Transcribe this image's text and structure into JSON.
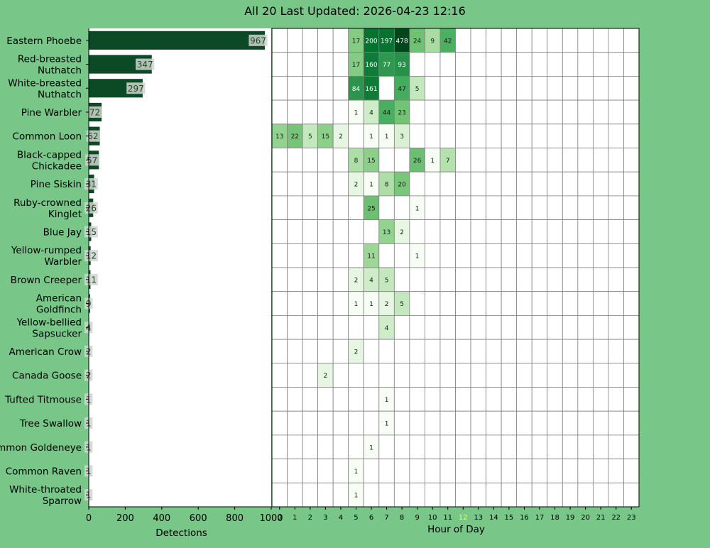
{
  "title": "All 20 Last Updated: 2026-04-23 12:16",
  "colors": {
    "page_background": "#78c688",
    "bar": "#0c4a26",
    "grid_line": "#808080",
    "current_hour_label": "#ffff33",
    "label_box": "#d3d3d3"
  },
  "current_hour": "12",
  "chart_data": [
    {
      "type": "bar",
      "orientation": "horizontal",
      "xlabel": "Detections",
      "xlim": [
        0,
        1000
      ],
      "xticks": [
        "0",
        "200",
        "400",
        "600",
        "800",
        "1000"
      ],
      "categories": [
        "Eastern Phoebe",
        "Red-breasted\nNuthatch",
        "White-breasted\nNuthatch",
        "Pine Warbler",
        "Common Loon",
        "Black-capped\nChickadee",
        "Pine Siskin",
        "Ruby-crowned\nKinglet",
        "Blue Jay",
        "Yellow-rumped\nWarbler",
        "Brown Creeper",
        "American\nGoldfinch",
        "Yellow-bellied\nSapsucker",
        "American Crow",
        "Canada Goose",
        "Tufted Titmouse",
        "Tree Swallow",
        "Common Goldeneye",
        "Common Raven",
        "White-throated\nSparrow"
      ],
      "values": [
        967,
        347,
        297,
        72,
        62,
        57,
        31,
        26,
        15,
        12,
        11,
        9,
        4,
        2,
        2,
        1,
        1,
        1,
        1,
        1
      ]
    },
    {
      "type": "heatmap",
      "xlabel": "Hour of Day",
      "hours": [
        "0",
        "1",
        "2",
        "3",
        "4",
        "5",
        "6",
        "7",
        "8",
        "9",
        "10",
        "11",
        "12",
        "13",
        "14",
        "15",
        "16",
        "17",
        "18",
        "19",
        "20",
        "21",
        "22",
        "23"
      ],
      "rows": [
        [
          null,
          null,
          null,
          null,
          null,
          17,
          200,
          197,
          478,
          24,
          9,
          42,
          null,
          null,
          null,
          null,
          null,
          null,
          null,
          null,
          null,
          null,
          null,
          null
        ],
        [
          null,
          null,
          null,
          null,
          null,
          17,
          160,
          77,
          93,
          null,
          null,
          null,
          null,
          null,
          null,
          null,
          null,
          null,
          null,
          null,
          null,
          null,
          null,
          null
        ],
        [
          null,
          null,
          null,
          null,
          null,
          84,
          161,
          null,
          47,
          5,
          null,
          null,
          null,
          null,
          null,
          null,
          null,
          null,
          null,
          null,
          null,
          null,
          null,
          null
        ],
        [
          null,
          null,
          null,
          null,
          null,
          1,
          4,
          44,
          23,
          null,
          null,
          null,
          null,
          null,
          null,
          null,
          null,
          null,
          null,
          null,
          null,
          null,
          null,
          null
        ],
        [
          13,
          22,
          5,
          15,
          2,
          null,
          1,
          1,
          3,
          null,
          null,
          null,
          null,
          null,
          null,
          null,
          null,
          null,
          null,
          null,
          null,
          null,
          null,
          null
        ],
        [
          null,
          null,
          null,
          null,
          null,
          8,
          15,
          null,
          null,
          26,
          1,
          7,
          null,
          null,
          null,
          null,
          null,
          null,
          null,
          null,
          null,
          null,
          null,
          null
        ],
        [
          null,
          null,
          null,
          null,
          null,
          2,
          1,
          8,
          20,
          null,
          null,
          null,
          null,
          null,
          null,
          null,
          null,
          null,
          null,
          null,
          null,
          null,
          null,
          null
        ],
        [
          null,
          null,
          null,
          null,
          null,
          null,
          25,
          null,
          null,
          1,
          null,
          null,
          null,
          null,
          null,
          null,
          null,
          null,
          null,
          null,
          null,
          null,
          null,
          null
        ],
        [
          null,
          null,
          null,
          null,
          null,
          null,
          null,
          13,
          2,
          null,
          null,
          null,
          null,
          null,
          null,
          null,
          null,
          null,
          null,
          null,
          null,
          null,
          null,
          null
        ],
        [
          null,
          null,
          null,
          null,
          null,
          null,
          11,
          null,
          null,
          1,
          null,
          null,
          null,
          null,
          null,
          null,
          null,
          null,
          null,
          null,
          null,
          null,
          null,
          null
        ],
        [
          null,
          null,
          null,
          null,
          null,
          2,
          4,
          5,
          null,
          null,
          null,
          null,
          null,
          null,
          null,
          null,
          null,
          null,
          null,
          null,
          null,
          null,
          null,
          null
        ],
        [
          null,
          null,
          null,
          null,
          null,
          1,
          1,
          2,
          5,
          null,
          null,
          null,
          null,
          null,
          null,
          null,
          null,
          null,
          null,
          null,
          null,
          null,
          null,
          null
        ],
        [
          null,
          null,
          null,
          null,
          null,
          null,
          null,
          4,
          null,
          null,
          null,
          null,
          null,
          null,
          null,
          null,
          null,
          null,
          null,
          null,
          null,
          null,
          null,
          null
        ],
        [
          null,
          null,
          null,
          null,
          null,
          2,
          null,
          null,
          null,
          null,
          null,
          null,
          null,
          null,
          null,
          null,
          null,
          null,
          null,
          null,
          null,
          null,
          null,
          null
        ],
        [
          null,
          null,
          null,
          2,
          null,
          null,
          null,
          null,
          null,
          null,
          null,
          null,
          null,
          null,
          null,
          null,
          null,
          null,
          null,
          null,
          null,
          null,
          null,
          null
        ],
        [
          null,
          null,
          null,
          null,
          null,
          null,
          null,
          1,
          null,
          null,
          null,
          null,
          null,
          null,
          null,
          null,
          null,
          null,
          null,
          null,
          null,
          null,
          null,
          null
        ],
        [
          null,
          null,
          null,
          null,
          null,
          null,
          null,
          1,
          null,
          null,
          null,
          null,
          null,
          null,
          null,
          null,
          null,
          null,
          null,
          null,
          null,
          null,
          null,
          null
        ],
        [
          null,
          null,
          null,
          null,
          null,
          null,
          1,
          null,
          null,
          null,
          null,
          null,
          null,
          null,
          null,
          null,
          null,
          null,
          null,
          null,
          null,
          null,
          null,
          null
        ],
        [
          null,
          null,
          null,
          null,
          null,
          1,
          null,
          null,
          null,
          null,
          null,
          null,
          null,
          null,
          null,
          null,
          null,
          null,
          null,
          null,
          null,
          null,
          null,
          null
        ],
        [
          null,
          null,
          null,
          null,
          null,
          1,
          null,
          null,
          null,
          null,
          null,
          null,
          null,
          null,
          null,
          null,
          null,
          null,
          null,
          null,
          null,
          null,
          null,
          null
        ]
      ]
    }
  ]
}
